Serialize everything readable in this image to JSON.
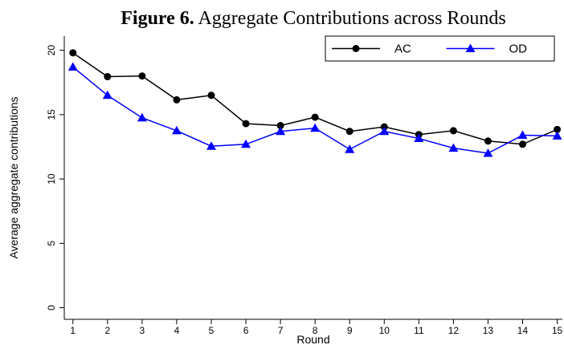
{
  "chart_data": {
    "type": "line",
    "figure_label": "Figure 6.",
    "title": "Aggregate Contributions across Rounds",
    "x_label": "Round",
    "y_label": "Average aggregate contributions",
    "x": [
      1,
      2,
      3,
      4,
      5,
      6,
      7,
      8,
      9,
      10,
      11,
      12,
      13,
      14,
      15
    ],
    "series": [
      {
        "name": "AC",
        "color": "#000000",
        "marker": "circle",
        "values": [
          19.8,
          17.95,
          18.0,
          16.15,
          16.5,
          14.3,
          14.15,
          14.8,
          13.7,
          14.05,
          13.45,
          13.75,
          12.95,
          12.7,
          13.85
        ]
      },
      {
        "name": "OD",
        "color": "#0000ff",
        "marker": "triangle",
        "values": [
          18.7,
          16.5,
          14.75,
          13.75,
          12.55,
          12.7,
          13.7,
          13.95,
          12.3,
          13.7,
          13.15,
          12.4,
          12.0,
          13.4,
          13.35
        ]
      }
    ],
    "xlim": [
      0.75,
      15.15
    ],
    "xticks": [
      1,
      2,
      3,
      4,
      5,
      6,
      7,
      8,
      9,
      10,
      11,
      12,
      13,
      14,
      15
    ],
    "ylim": [
      -0.9,
      21.1
    ],
    "yticks": [
      0,
      5,
      10,
      15,
      20
    ],
    "grid": false,
    "legend": "top-right"
  }
}
